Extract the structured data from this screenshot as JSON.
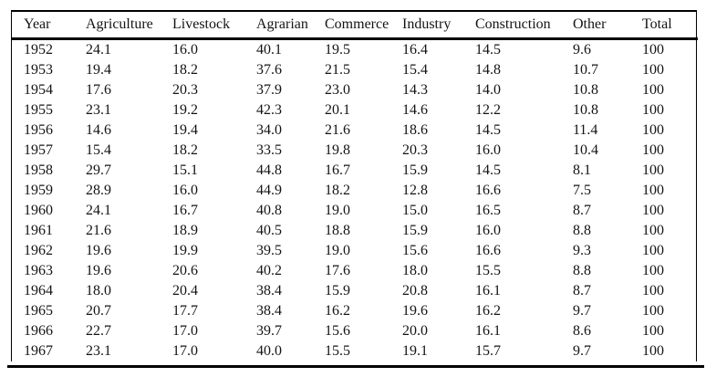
{
  "table": {
    "columns": [
      "Year",
      "Agriculture",
      "Livestock",
      "Agrarian",
      "Commerce",
      "Industry",
      "Construction",
      "Other",
      "Total"
    ],
    "rows": [
      [
        "1952",
        "24.1",
        "16.0",
        "40.1",
        "19.5",
        "16.4",
        "14.5",
        "9.6",
        "100"
      ],
      [
        "1953",
        "19.4",
        "18.2",
        "37.6",
        "21.5",
        "15.4",
        "14.8",
        "10.7",
        "100"
      ],
      [
        "1954",
        "17.6",
        "20.3",
        "37.9",
        "23.0",
        "14.3",
        "14.0",
        "10.8",
        "100"
      ],
      [
        "1955",
        "23.1",
        "19.2",
        "42.3",
        "20.1",
        "14.6",
        "12.2",
        "10.8",
        "100"
      ],
      [
        "1956",
        "14.6",
        "19.4",
        "34.0",
        "21.6",
        "18.6",
        "14.5",
        "11.4",
        "100"
      ],
      [
        "1957",
        "15.4",
        "18.2",
        "33.5",
        "19.8",
        "20.3",
        "16.0",
        "10.4",
        "100"
      ],
      [
        "1958",
        "29.7",
        "15.1",
        "44.8",
        "16.7",
        "15.9",
        "14.5",
        "8.1",
        "100"
      ],
      [
        "1959",
        "28.9",
        "16.0",
        "44.9",
        "18.2",
        "12.8",
        "16.6",
        "7.5",
        "100"
      ],
      [
        "1960",
        "24.1",
        "16.7",
        "40.8",
        "19.0",
        "15.0",
        "16.5",
        "8.7",
        "100"
      ],
      [
        "1961",
        "21.6",
        "18.9",
        "40.5",
        "18.8",
        "15.9",
        "16.0",
        "8.8",
        "100"
      ],
      [
        "1962",
        "19.6",
        "19.9",
        "39.5",
        "19.0",
        "15.6",
        "16.6",
        "9.3",
        "100"
      ],
      [
        "1963",
        "19.6",
        "20.6",
        "40.2",
        "17.6",
        "18.0",
        "15.5",
        "8.8",
        "100"
      ],
      [
        "1964",
        "18.0",
        "20.4",
        "38.4",
        "15.9",
        "20.8",
        "16.1",
        "8.7",
        "100"
      ],
      [
        "1965",
        "20.7",
        "17.7",
        "38.4",
        "16.2",
        "19.6",
        "16.2",
        "9.7",
        "100"
      ],
      [
        "1966",
        "22.7",
        "17.0",
        "39.7",
        "15.6",
        "20.0",
        "16.1",
        "8.6",
        "100"
      ],
      [
        "1967",
        "23.1",
        "17.0",
        "40.0",
        "15.5",
        "19.1",
        "15.7",
        "9.7",
        "100"
      ]
    ]
  },
  "chart_data": {
    "type": "table",
    "title": "",
    "categories": [
      "1952",
      "1953",
      "1954",
      "1955",
      "1956",
      "1957",
      "1958",
      "1959",
      "1960",
      "1961",
      "1962",
      "1963",
      "1964",
      "1965",
      "1966",
      "1967"
    ],
    "series": [
      {
        "name": "Agriculture",
        "values": [
          24.1,
          19.4,
          17.6,
          23.1,
          14.6,
          15.4,
          29.7,
          28.9,
          24.1,
          21.6,
          19.6,
          19.6,
          18.0,
          20.7,
          22.7,
          23.1
        ]
      },
      {
        "name": "Livestock",
        "values": [
          16.0,
          18.2,
          20.3,
          19.2,
          19.4,
          18.2,
          15.1,
          16.0,
          16.7,
          18.9,
          19.9,
          20.6,
          20.4,
          17.7,
          17.0,
          17.0
        ]
      },
      {
        "name": "Agrarian",
        "values": [
          40.1,
          37.6,
          37.9,
          42.3,
          34.0,
          33.5,
          44.8,
          44.9,
          40.8,
          40.5,
          39.5,
          40.2,
          38.4,
          38.4,
          39.7,
          40.0
        ]
      },
      {
        "name": "Commerce",
        "values": [
          19.5,
          21.5,
          23.0,
          20.1,
          21.6,
          19.8,
          16.7,
          18.2,
          19.0,
          18.8,
          19.0,
          17.6,
          15.9,
          16.2,
          15.6,
          15.5
        ]
      },
      {
        "name": "Industry",
        "values": [
          16.4,
          15.4,
          14.3,
          14.6,
          18.6,
          20.3,
          15.9,
          12.8,
          15.0,
          15.9,
          15.6,
          18.0,
          20.8,
          19.6,
          20.0,
          19.1
        ]
      },
      {
        "name": "Construction",
        "values": [
          14.5,
          14.8,
          14.0,
          12.2,
          14.5,
          16.0,
          14.5,
          16.6,
          16.5,
          16.0,
          16.6,
          15.5,
          16.1,
          16.2,
          16.1,
          15.7
        ]
      },
      {
        "name": "Other",
        "values": [
          9.6,
          10.7,
          10.8,
          10.8,
          11.4,
          10.4,
          8.1,
          7.5,
          8.7,
          8.8,
          9.3,
          8.8,
          8.7,
          9.7,
          8.6,
          9.7
        ]
      },
      {
        "name": "Total",
        "values": [
          100,
          100,
          100,
          100,
          100,
          100,
          100,
          100,
          100,
          100,
          100,
          100,
          100,
          100,
          100,
          100
        ]
      }
    ]
  }
}
